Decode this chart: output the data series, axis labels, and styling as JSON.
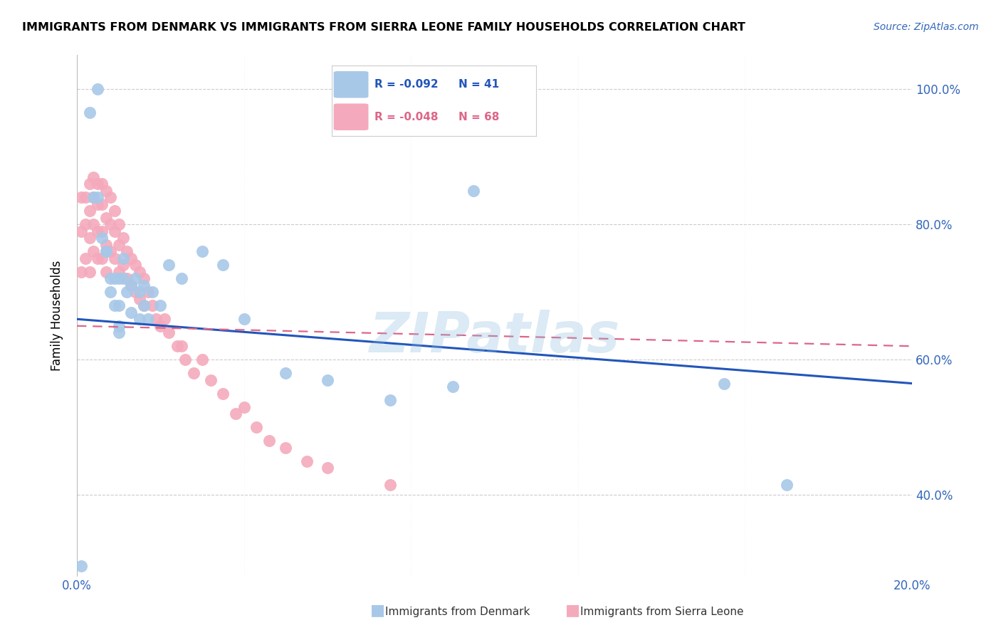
{
  "title": "IMMIGRANTS FROM DENMARK VS IMMIGRANTS FROM SIERRA LEONE FAMILY HOUSEHOLDS CORRELATION CHART",
  "source": "Source: ZipAtlas.com",
  "ylabel": "Family Households",
  "y_ticks": [
    0.4,
    0.6,
    0.8,
    1.0
  ],
  "y_tick_labels": [
    "40.0%",
    "60.0%",
    "80.0%",
    "100.0%"
  ],
  "xlim": [
    0.0,
    0.2
  ],
  "ylim": [
    0.28,
    1.05
  ],
  "legend_R_denmark": "-0.092",
  "legend_N_denmark": "41",
  "legend_R_sierra": "-0.048",
  "legend_N_sierra": "68",
  "denmark_color": "#a8c8e8",
  "sierra_color": "#f4aabc",
  "denmark_line_color": "#2255bb",
  "sierra_line_color": "#dd6688",
  "watermark": "ZIPatlas",
  "denmark_x": [
    0.001,
    0.003,
    0.004,
    0.005,
    0.005,
    0.006,
    0.007,
    0.007,
    0.008,
    0.008,
    0.009,
    0.009,
    0.01,
    0.01,
    0.01,
    0.01,
    0.011,
    0.011,
    0.012,
    0.013,
    0.013,
    0.014,
    0.015,
    0.015,
    0.016,
    0.016,
    0.017,
    0.018,
    0.02,
    0.022,
    0.025,
    0.03,
    0.035,
    0.04,
    0.05,
    0.06,
    0.075,
    0.09,
    0.095,
    0.155,
    0.17
  ],
  "denmark_y": [
    0.295,
    0.965,
    0.84,
    1.0,
    0.84,
    0.78,
    0.76,
    0.76,
    0.72,
    0.7,
    0.72,
    0.68,
    0.72,
    0.68,
    0.65,
    0.64,
    0.75,
    0.72,
    0.7,
    0.71,
    0.67,
    0.72,
    0.7,
    0.66,
    0.71,
    0.68,
    0.66,
    0.7,
    0.68,
    0.74,
    0.72,
    0.76,
    0.74,
    0.66,
    0.58,
    0.57,
    0.54,
    0.56,
    0.85,
    0.565,
    0.415
  ],
  "sierra_x": [
    0.001,
    0.001,
    0.001,
    0.002,
    0.002,
    0.002,
    0.003,
    0.003,
    0.003,
    0.003,
    0.004,
    0.004,
    0.004,
    0.004,
    0.005,
    0.005,
    0.005,
    0.005,
    0.006,
    0.006,
    0.006,
    0.006,
    0.007,
    0.007,
    0.007,
    0.007,
    0.008,
    0.008,
    0.008,
    0.009,
    0.009,
    0.009,
    0.01,
    0.01,
    0.01,
    0.011,
    0.011,
    0.012,
    0.012,
    0.013,
    0.013,
    0.014,
    0.014,
    0.015,
    0.015,
    0.016,
    0.016,
    0.017,
    0.018,
    0.019,
    0.02,
    0.021,
    0.022,
    0.024,
    0.025,
    0.026,
    0.028,
    0.03,
    0.032,
    0.035,
    0.038,
    0.04,
    0.043,
    0.046,
    0.05,
    0.055,
    0.06,
    0.075
  ],
  "sierra_y": [
    0.84,
    0.79,
    0.73,
    0.84,
    0.8,
    0.75,
    0.86,
    0.82,
    0.78,
    0.73,
    0.87,
    0.84,
    0.8,
    0.76,
    0.86,
    0.83,
    0.79,
    0.75,
    0.86,
    0.83,
    0.79,
    0.75,
    0.85,
    0.81,
    0.77,
    0.73,
    0.84,
    0.8,
    0.76,
    0.82,
    0.79,
    0.75,
    0.8,
    0.77,
    0.73,
    0.78,
    0.74,
    0.76,
    0.72,
    0.75,
    0.71,
    0.74,
    0.7,
    0.73,
    0.69,
    0.72,
    0.68,
    0.7,
    0.68,
    0.66,
    0.65,
    0.66,
    0.64,
    0.62,
    0.62,
    0.6,
    0.58,
    0.6,
    0.57,
    0.55,
    0.52,
    0.53,
    0.5,
    0.48,
    0.47,
    0.45,
    0.44,
    0.415
  ]
}
